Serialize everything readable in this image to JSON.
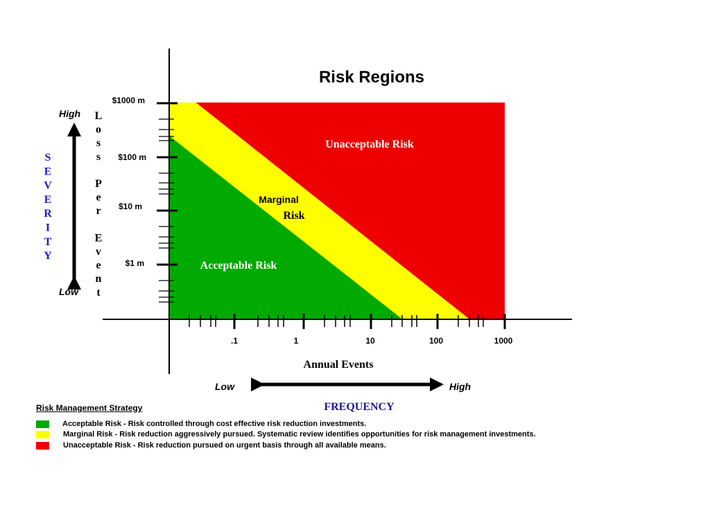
{
  "chart_data": {
    "type": "area",
    "title": "Risk Regions",
    "xlabel": "Annual Events",
    "x_axis_group_label": "FREQUENCY",
    "x_low_label": "Low",
    "x_high_label": "High",
    "x_ticks": [
      ".1",
      "1",
      "10",
      "100",
      "1000"
    ],
    "x_tick_values": [
      0.1,
      1,
      10,
      100,
      1000
    ],
    "x_scale": "log",
    "xlim": [
      0.01,
      1000
    ],
    "ylabel_letters": [
      "L",
      "o",
      "s",
      "s",
      "",
      "P",
      "e",
      "r",
      "",
      "E",
      "v",
      "e",
      "n",
      "t"
    ],
    "severity_letters": [
      "S",
      "E",
      "V",
      "E",
      "R",
      "I",
      "T",
      "Y"
    ],
    "y_high_label": "High",
    "y_low_label": "Low",
    "y_ticks": [
      "$1 m",
      "$10 m",
      "$100 m",
      "$1000 m"
    ],
    "y_tick_values": [
      1,
      10,
      100,
      1000
    ],
    "y_scale": "log",
    "ylim": [
      0.01,
      1000
    ],
    "grid": false,
    "regions": [
      {
        "name": "Unacceptable Risk",
        "color": "#ee0000",
        "boundary_x_at_top": 0.025,
        "boundary_x_at_bottom": 300
      },
      {
        "name": "Marginal Risk",
        "label_lines": [
          "Marginal",
          "Risk"
        ],
        "color": "#ffff00",
        "boundary_x_at_top": 0.01,
        "boundary_x_at_bottom": 30
      },
      {
        "name": "Acceptable Risk",
        "color": "#00aa00"
      }
    ]
  },
  "legend": {
    "title": "Risk Management Strategy",
    "items": [
      {
        "color": "#00aa00",
        "text": "Acceptable Risk - Risk controlled through cost effective risk reduction investments."
      },
      {
        "color": "#ffff00",
        "text": "Marginal Risk - Risk reduction aggressively pursued.  Systematic review identifies opportunities for risk management investments."
      },
      {
        "color": "#ee0000",
        "text": "Unacceptable Risk - Risk reduction pursued on urgent basis through all available means."
      }
    ]
  }
}
